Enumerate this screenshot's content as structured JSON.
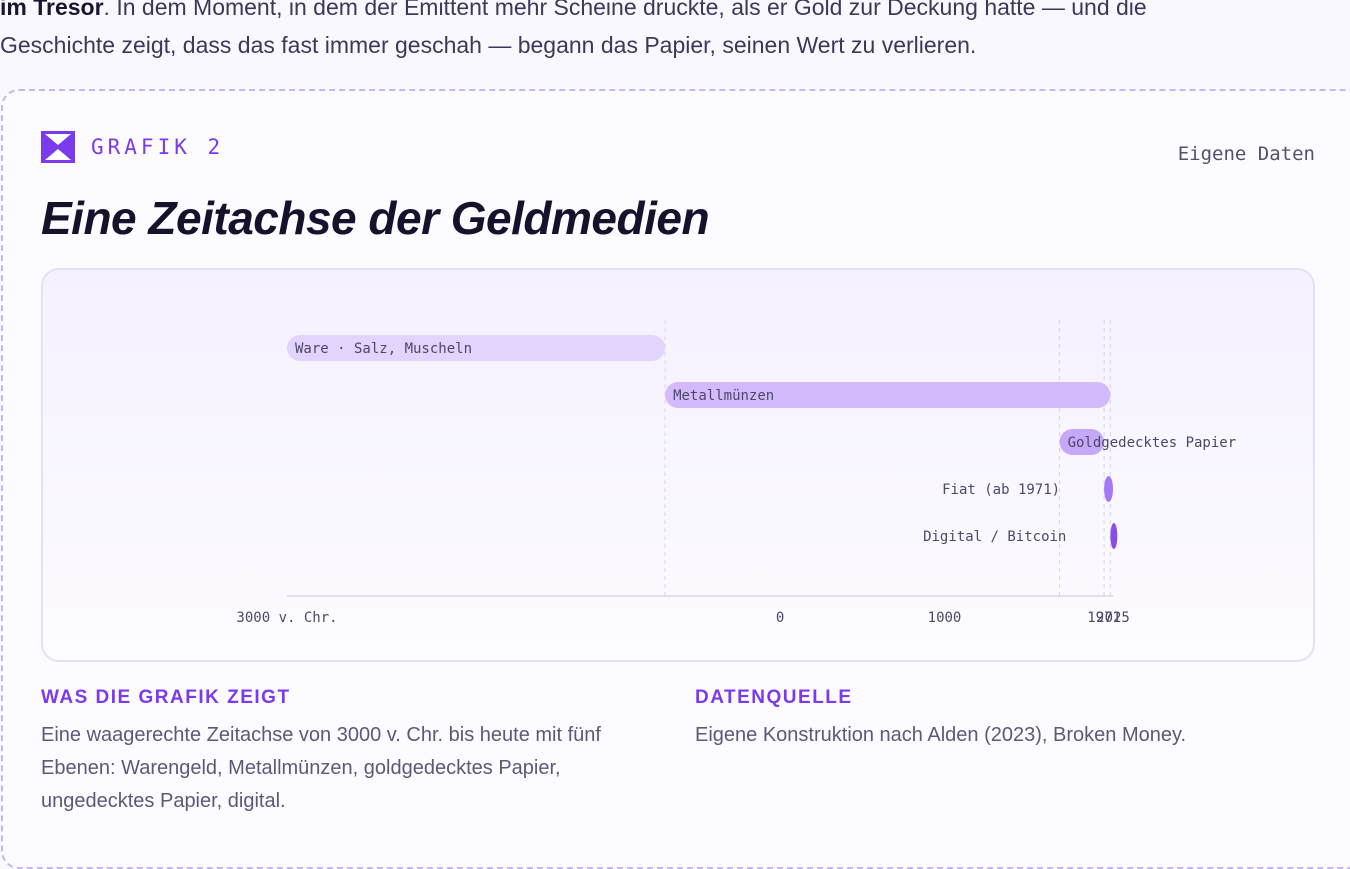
{
  "intro": {
    "line1_bold": "im Tresor",
    "line1_rest": ". In dem Moment, in dem der Emittent mehr Scheine druckte, als er Gold zur Deckung hatte — und die",
    "line2": "Geschichte zeigt, dass das fast immer geschah — begann das Papier, seinen Wert zu verlieren."
  },
  "figure": {
    "kicker": "GRAFIK 2",
    "source_tag": "Eigene Daten",
    "title": "Eine Zeitachse der Geldmedien"
  },
  "colors": {
    "accent": "#7c3aed",
    "bar_light": "#e2d4fd",
    "bar_mid": "#d2bafc",
    "bar_strong": "#c6a8fa",
    "bar_dark": "#a678f5",
    "bar_darkest": "#8b4de8"
  },
  "chart_data": {
    "type": "timeline",
    "x_range": [
      -3000,
      2025
    ],
    "ticks": [
      {
        "value": -3000,
        "label": "3000 v. Chr."
      },
      {
        "value": 0,
        "label": "0"
      },
      {
        "value": 1000,
        "label": "1000"
      },
      {
        "value": 1971,
        "label": "1971"
      },
      {
        "value": 2025,
        "label": "2025"
      }
    ],
    "reference_lines": [
      -700,
      1700,
      1971,
      2009
    ],
    "rows": [
      {
        "label": "Ware · Salz, Muscheln",
        "start": -3000,
        "end": -700,
        "color": "#e2d4fd",
        "label_pos": "inside"
      },
      {
        "label": "Metallmünzen",
        "start": -700,
        "end": 2009,
        "color": "#d2bafc",
        "label_pos": "inside"
      },
      {
        "label": "Goldgedecktes Papier",
        "start": 1700,
        "end": 1971,
        "color": "#c6a8fa",
        "label_pos": "inside"
      },
      {
        "label": "Fiat (ab 1971)",
        "start": 1971,
        "end": 2025,
        "color": "#a678f5",
        "label_pos": "left"
      },
      {
        "label": "Digital / Bitcoin",
        "start": 2009,
        "end": 2025,
        "color": "#8b4de8",
        "label_pos": "left"
      }
    ]
  },
  "notes": {
    "shows_heading": "WAS DIE GRAFIK ZEIGT",
    "shows_text": "Eine waagerechte Zeitachse von 3000 v. Chr. bis heute mit fünf Ebenen: Warengeld, Metallmünzen, goldgedecktes Papier, ungedecktes Papier, digital.",
    "source_heading": "DATENQUELLE",
    "source_text": "Eigene Konstruktion nach Alden (2023), Broken Money."
  }
}
